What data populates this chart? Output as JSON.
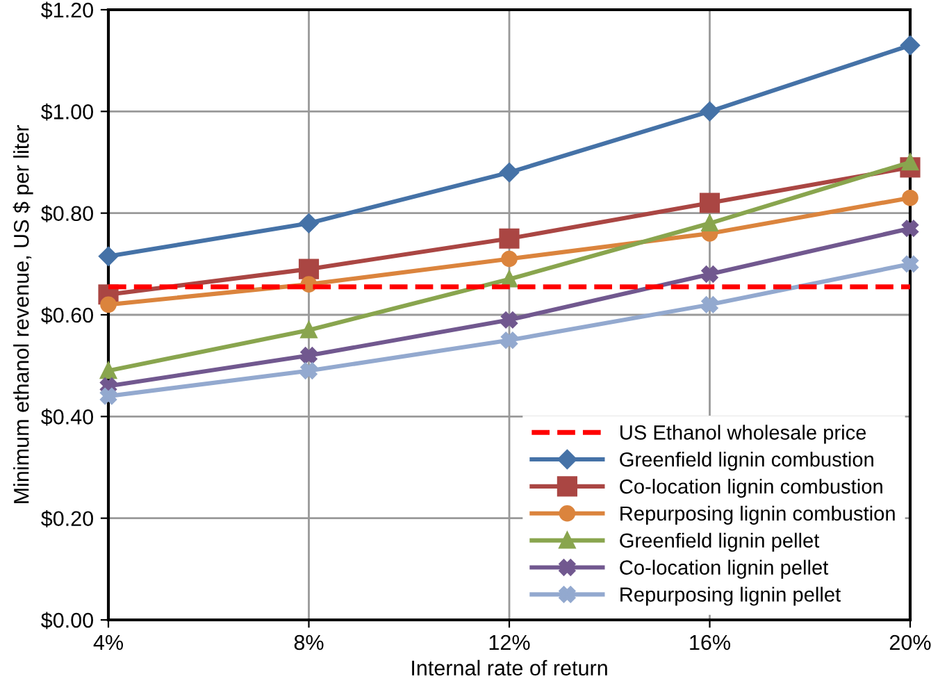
{
  "chart_data": {
    "type": "line",
    "xlabel": "Internal rate of return",
    "ylabel": "Minimum ethanol revenue, US $ per liter",
    "categories": [
      "4%",
      "8%",
      "12%",
      "16%",
      "20%"
    ],
    "ylim": [
      0,
      1.2
    ],
    "yticks": [
      {
        "value": 0,
        "label": "$0.00"
      },
      {
        "value": 0.2,
        "label": "$0.20"
      },
      {
        "value": 0.4,
        "label": "$0.40"
      },
      {
        "value": 0.6,
        "label": "$0.60"
      },
      {
        "value": 0.8,
        "label": "$0.80"
      },
      {
        "value": 1.0,
        "label": "$1.00"
      },
      {
        "value": 1.2,
        "label": "$1.20"
      }
    ],
    "grid": true,
    "legend": "bottom right",
    "line_style": "solid",
    "ref_lines": [
      {
        "axis": "y",
        "value": 0.655,
        "label": "US Ethanol wholesale price",
        "color": "#ff0000",
        "line_style": "dashed"
      }
    ],
    "series": [
      {
        "name": "Greenfield lignin combustion",
        "color": "#4572a7",
        "marker": "diamond",
        "values": [
          0.715,
          0.78,
          0.88,
          1.0,
          1.13
        ]
      },
      {
        "name": "Co-location lignin combustion",
        "color": "#aa4643",
        "marker": "square",
        "values": [
          0.64,
          0.69,
          0.75,
          0.82,
          0.89
        ]
      },
      {
        "name": "Repurposing lignin combustion",
        "color": "#db843d",
        "marker": "circle",
        "values": [
          0.62,
          0.66,
          0.71,
          0.76,
          0.83
        ]
      },
      {
        "name": "Greenfield lignin pellet",
        "color": "#89a54e",
        "marker": "triangle",
        "values": [
          0.49,
          0.57,
          0.67,
          0.78,
          0.9
        ]
      },
      {
        "name": "Co-location lignin pellet",
        "color": "#71588f",
        "marker": "cross",
        "values": [
          0.46,
          0.52,
          0.59,
          0.68,
          0.77
        ]
      },
      {
        "name": "Repurposing lignin pellet",
        "color": "#93a9cf",
        "marker": "cross",
        "values": [
          0.44,
          0.49,
          0.55,
          0.62,
          0.7
        ]
      }
    ]
  }
}
